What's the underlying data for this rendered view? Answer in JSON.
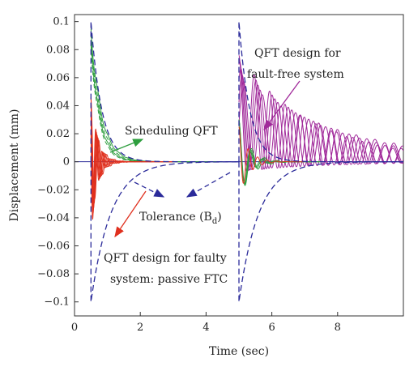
{
  "chart_data": {
    "type": "line",
    "title": "",
    "xlabel": "Time (sec)",
    "ylabel": "Displacement (mm)",
    "xlim": [
      0,
      10
    ],
    "ylim": [
      -0.11,
      0.105
    ],
    "xticks": [
      0,
      2,
      4,
      6,
      8
    ],
    "yticks": [
      0.1,
      0.08,
      0.06,
      0.04,
      0.02,
      0,
      -0.02,
      -0.04,
      -0.06,
      -0.08,
      -0.1
    ],
    "ytick_labels": [
      "0.1",
      "0.08",
      "0.06",
      "0.04",
      "0.02",
      "0",
      "−0.02",
      "−0.04",
      "−0.06",
      "−0.08",
      "−0.1"
    ],
    "grid": false,
    "legend": "none",
    "disturbances": [
      {
        "t0": 0.5,
        "amplitude": 0.1
      },
      {
        "t0": 5.0,
        "amplitude": 0.1
      }
    ],
    "tolerance_bound": {
      "decay_rate": 3.0,
      "note_color": "#2b2b9a"
    },
    "series": [
      {
        "color": "#2b2b9a",
        "style": "dashed",
        "values_desc": "upper bound"
      },
      {
        "color": "#2b2b9a",
        "style": "dashed",
        "values_desc": "lower bound"
      },
      {
        "color": "#e0301e",
        "style": "solid"
      },
      {
        "color": "#2e9e3e",
        "style": "solid"
      },
      {
        "color": "#a0299a",
        "style": "solid"
      }
    ],
    "annotations": [
      {
        "text": "Scheduling QFT",
        "arrow_color": "#2e9e3e"
      },
      {
        "text": "QFT design for",
        "arrow_color": "#a0299a"
      },
      {
        "text": "fault-free system",
        "arrow_color": "#a0299a"
      },
      {
        "text": "Tolerance (B",
        "sub": "d",
        "tail": ")",
        "arrow_color": "#2b2b9a"
      },
      {
        "text": "QFT design for faulty",
        "arrow_color": "#e0301e"
      },
      {
        "text": "system: passive FTC",
        "arrow_color": "#e0301e"
      }
    ],
    "colors": {
      "tolerance": "#2b2b9a",
      "scheduling": "#2e9e3e",
      "faulty": "#e0301e",
      "faultfree": "#a0299a",
      "zero_line": "#2b2b9a"
    }
  }
}
